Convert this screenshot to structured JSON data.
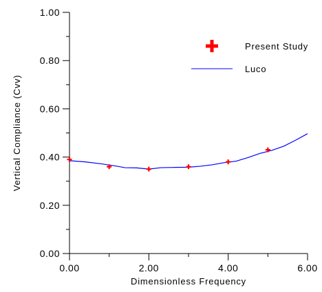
{
  "chart_data": {
    "type": "line",
    "title": "",
    "xlabel": "Dimensionless Frequency",
    "ylabel": "Vertical Compliance (Cvv)",
    "xlim": [
      0,
      6
    ],
    "ylim": [
      0,
      1
    ],
    "x_ticks": [
      "0.00",
      "2.00",
      "4.00",
      "6.00"
    ],
    "y_ticks": [
      "0.00",
      "0.20",
      "0.40",
      "0.60",
      "0.80",
      "1.00"
    ],
    "grid": false,
    "legend": "top-right",
    "series": [
      {
        "name": "Present Study",
        "style": "marker-plus",
        "color": "#ff0000",
        "x": [
          0,
          1,
          2,
          3,
          4,
          5
        ],
        "y": [
          0.39,
          0.36,
          0.35,
          0.36,
          0.38,
          0.43
        ]
      },
      {
        "name": "Luco",
        "style": "line",
        "color": "#0000ff",
        "x": [
          0,
          0.4,
          0.8,
          1.2,
          1.4,
          1.7,
          2.0,
          2.3,
          2.6,
          3.0,
          3.3,
          3.6,
          3.9,
          4.2,
          4.5,
          4.8,
          5.1,
          5.4,
          5.7,
          6.0
        ],
        "y": [
          0.385,
          0.38,
          0.372,
          0.362,
          0.356,
          0.355,
          0.35,
          0.356,
          0.357,
          0.358,
          0.362,
          0.368,
          0.377,
          0.383,
          0.398,
          0.415,
          0.428,
          0.445,
          0.47,
          0.497
        ]
      }
    ]
  }
}
